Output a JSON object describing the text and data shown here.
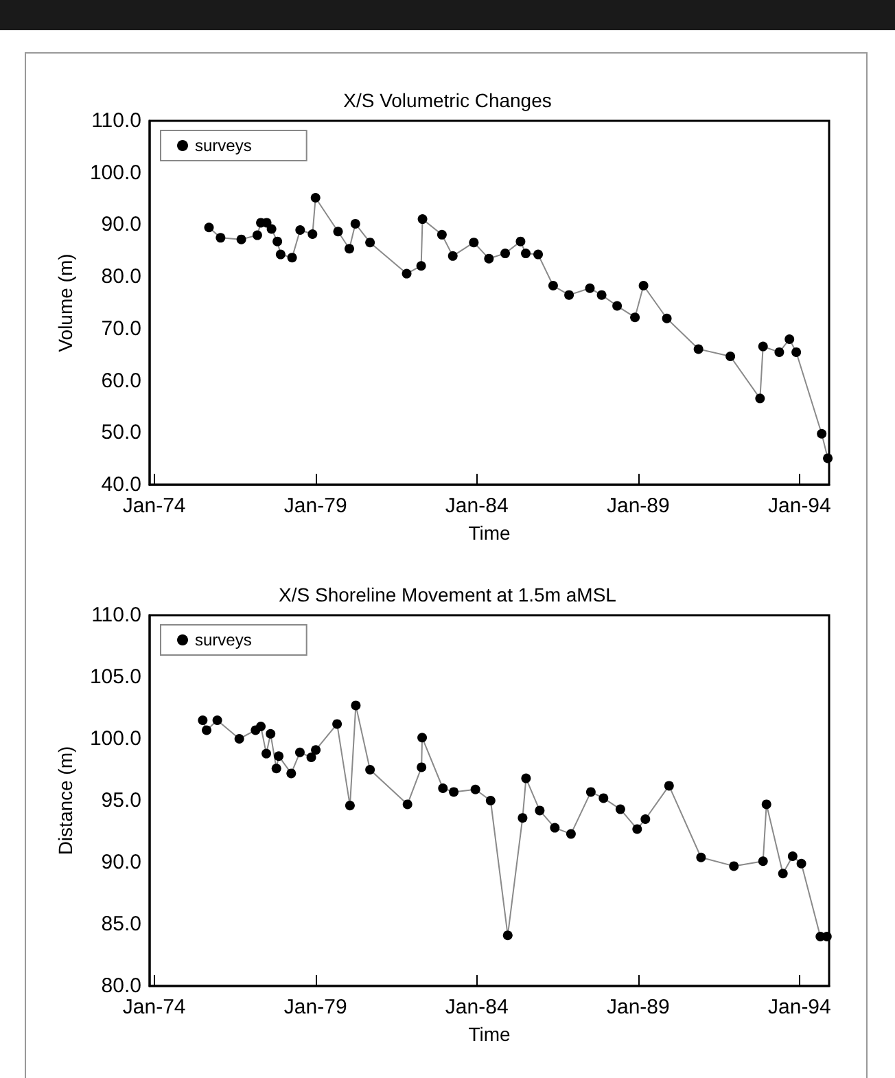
{
  "chart_data": [
    {
      "type": "line",
      "title": "X/S Volumetric Changes",
      "xlabel": "Time",
      "ylabel": "Volume (m)",
      "legend": "top left",
      "grid": false,
      "marker": "circle",
      "line_style": "solid",
      "xlim": [
        "1973-11-10",
        "1994-12-02"
      ],
      "xticks": [
        {
          "value": "1974-01-01",
          "label": "Jan-74"
        },
        {
          "value": "1979-01-01",
          "label": "Jan-79"
        },
        {
          "value": "1984-01-01",
          "label": "Jan-84"
        },
        {
          "value": "1989-01-01",
          "label": "Jan-89"
        },
        {
          "value": "1994-01-01",
          "label": "Jan-94"
        }
      ],
      "ylim": [
        40,
        110
      ],
      "yticks": [
        {
          "value": 40,
          "label": "40.0"
        },
        {
          "value": 50,
          "label": "50.0"
        },
        {
          "value": 60,
          "label": "60.0"
        },
        {
          "value": 70,
          "label": "70.0"
        },
        {
          "value": 80,
          "label": "80.0"
        },
        {
          "value": 90,
          "label": "90.0"
        },
        {
          "value": 100,
          "label": "100.0"
        },
        {
          "value": 110,
          "label": "110.0"
        }
      ],
      "x": [
        "1975-09-13",
        "1976-01-22",
        "1976-09-13",
        "1977-03-13",
        "1977-04-22",
        "1977-06-27",
        "1977-08-21",
        "1977-10-26",
        "1977-12-02",
        "1978-04-11",
        "1978-07-11",
        "1978-11-28",
        "1979-01-01",
        "1979-09-13",
        "1980-01-19",
        "1980-03-27",
        "1980-09-09",
        "1981-10-29",
        "1982-04-11",
        "1982-04-26",
        "1982-12-02",
        "1983-04-04",
        "1983-11-28",
        "1984-05-17",
        "1984-11-17",
        "1985-05-10",
        "1985-07-08",
        "1985-11-25",
        "1986-05-14",
        "1986-11-10",
        "1987-07-04",
        "1987-11-14",
        "1988-05-07",
        "1988-11-25",
        "1989-03-02",
        "1989-11-21",
        "1990-11-14",
        "1991-11-10",
        "1992-10-11",
        "1992-11-14",
        "1993-05-17",
        "1993-09-09",
        "1993-11-25",
        "1994-09-09",
        "1994-11-17"
      ],
      "series": [
        {
          "name": "surveys",
          "color": "#000000",
          "values": [
            89.5,
            87.5,
            87.2,
            88.0,
            90.4,
            90.4,
            89.2,
            86.8,
            84.3,
            83.7,
            89.0,
            88.2,
            95.2,
            88.7,
            85.4,
            90.2,
            86.6,
            80.6,
            82.1,
            91.1,
            88.1,
            84.0,
            86.6,
            83.5,
            84.5,
            86.8,
            84.5,
            84.3,
            78.3,
            76.5,
            77.8,
            76.5,
            74.4,
            72.2,
            78.3,
            72.0,
            66.1,
            64.7,
            56.6,
            66.6,
            65.5,
            68.0,
            65.5,
            49.8,
            45.1
          ]
        }
      ]
    },
    {
      "type": "line",
      "title": "X/S Shoreline Movement at 1.5m aMSL",
      "xlabel": "Time",
      "ylabel": "Distance (m)",
      "legend": "top left",
      "grid": false,
      "marker": "circle",
      "line_style": "solid",
      "xlim": [
        "1973-11-10",
        "1994-12-02"
      ],
      "xticks": [
        {
          "value": "1974-01-01",
          "label": "Jan-74"
        },
        {
          "value": "1979-01-01",
          "label": "Jan-79"
        },
        {
          "value": "1984-01-01",
          "label": "Jan-84"
        },
        {
          "value": "1989-01-01",
          "label": "Jan-89"
        },
        {
          "value": "1994-01-01",
          "label": "Jan-94"
        }
      ],
      "ylim": [
        80,
        110
      ],
      "yticks": [
        {
          "value": 80,
          "label": "80.0"
        },
        {
          "value": 85,
          "label": "85.0"
        },
        {
          "value": 90,
          "label": "90.0"
        },
        {
          "value": 95,
          "label": "95.0"
        },
        {
          "value": 100,
          "label": "100.0"
        },
        {
          "value": 105,
          "label": "105.0"
        },
        {
          "value": 110,
          "label": "110.0"
        }
      ],
      "x": [
        "1975-07-04",
        "1975-08-17",
        "1975-12-16",
        "1976-08-21",
        "1977-02-21",
        "1977-04-22",
        "1977-06-23",
        "1977-08-10",
        "1977-10-15",
        "1977-11-10",
        "1978-04-01",
        "1978-07-08",
        "1978-11-14",
        "1979-01-04",
        "1979-09-02",
        "1980-01-26",
        "1980-04-01",
        "1980-09-09",
        "1981-11-07",
        "1982-04-15",
        "1982-04-22",
        "1982-12-13",
        "1983-04-15",
        "1983-12-16",
        "1984-06-05",
        "1984-12-16",
        "1985-06-02",
        "1985-07-11",
        "1985-12-13",
        "1986-06-02",
        "1986-12-02",
        "1987-07-15",
        "1987-12-05",
        "1988-06-13",
        "1988-12-20",
        "1989-03-23",
        "1989-12-16",
        "1990-12-13",
        "1991-12-20",
        "1992-11-14",
        "1992-12-23",
        "1993-06-27",
        "1993-10-15",
        "1994-01-22",
        "1994-08-25",
        "1994-11-07"
      ],
      "series": [
        {
          "name": "surveys",
          "color": "#000000",
          "values": [
            101.5,
            100.7,
            101.5,
            100.0,
            100.7,
            101.0,
            98.8,
            100.4,
            97.6,
            98.6,
            97.2,
            98.9,
            98.5,
            99.1,
            101.2,
            94.6,
            102.7,
            97.5,
            94.7,
            97.7,
            100.1,
            96.0,
            95.7,
            95.9,
            95.0,
            84.1,
            93.6,
            96.8,
            94.2,
            92.8,
            92.3,
            95.7,
            95.2,
            94.3,
            92.7,
            93.5,
            96.2,
            90.4,
            89.7,
            90.1,
            94.7,
            89.1,
            90.5,
            89.9,
            84.0,
            84.0
          ]
        }
      ]
    }
  ]
}
